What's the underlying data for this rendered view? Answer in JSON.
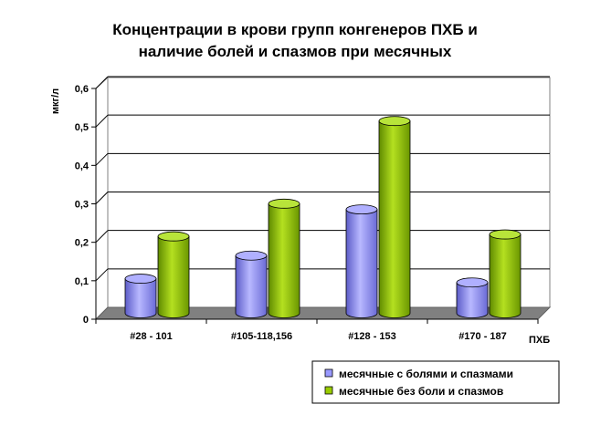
{
  "chart_data": {
    "type": "bar",
    "title": [
      "Концентрации в крови групп конгенеров ПХБ и",
      "наличие болей и спазмов при месячных"
    ],
    "ylabel": "мкг/л",
    "xlabel": "ПХБ",
    "categories": [
      "#28 - 101",
      "#105-118,156",
      "#128 - 153",
      "#170 - 187"
    ],
    "ylim": [
      0,
      0.6
    ],
    "yticks": [
      "0",
      "0,1",
      "0,2",
      "0,3",
      "0,4",
      "0,5",
      "0,6"
    ],
    "grid": true,
    "style": "3d-cylinder",
    "legend_position": "bottom-right",
    "series": [
      {
        "name": "месячные с болями и спазмами",
        "values": [
          0.09,
          0.15,
          0.27,
          0.08
        ],
        "color": "#9999ff"
      },
      {
        "name": "месячные без боли и спазмов",
        "values": [
          0.2,
          0.285,
          0.5,
          0.205
        ],
        "color": "#99cc00"
      }
    ]
  }
}
